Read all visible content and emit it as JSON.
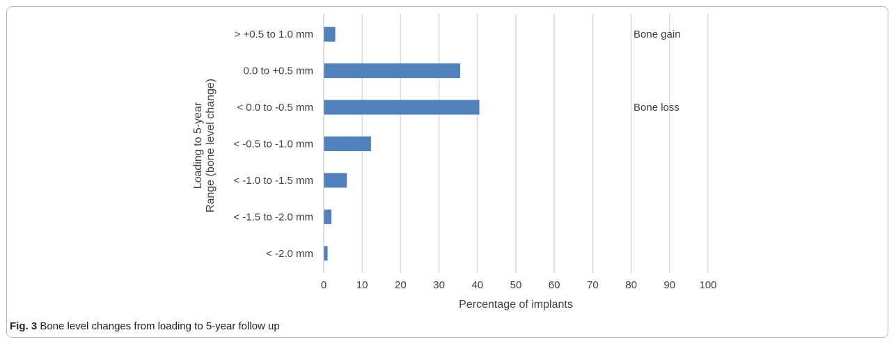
{
  "chart_data": {
    "type": "bar",
    "orientation": "horizontal",
    "categories": [
      "> +0.5 to 1.0 mm",
      "0.0 to +0.5 mm",
      "< 0.0 to -0.5 mm",
      "< -0.5 to -1.0 mm",
      "< -1.0 to -1.5 mm",
      "< -1.5 to -2.0 mm",
      "< -2.0 mm"
    ],
    "values": [
      3,
      35.5,
      40.5,
      12.3,
      6,
      2,
      1
    ],
    "xlabel": "Percentage of implants",
    "ylabel_lines": [
      "Range (bone level change)",
      "Loading to 5-year"
    ],
    "xlim": [
      0,
      100
    ],
    "xticks": [
      "0",
      "10",
      "20",
      "30",
      "40",
      "50",
      "60",
      "70",
      "80",
      "90",
      "100"
    ],
    "grid": "vertical",
    "bar_color": "#4f81bd",
    "annotations": [
      {
        "text": "Bone gain",
        "category_index": 0
      },
      {
        "text": "Bone loss",
        "category_index": 2
      }
    ]
  },
  "caption": {
    "label": "Fig. 3",
    "text": " Bone level changes from loading to 5-year follow up"
  }
}
